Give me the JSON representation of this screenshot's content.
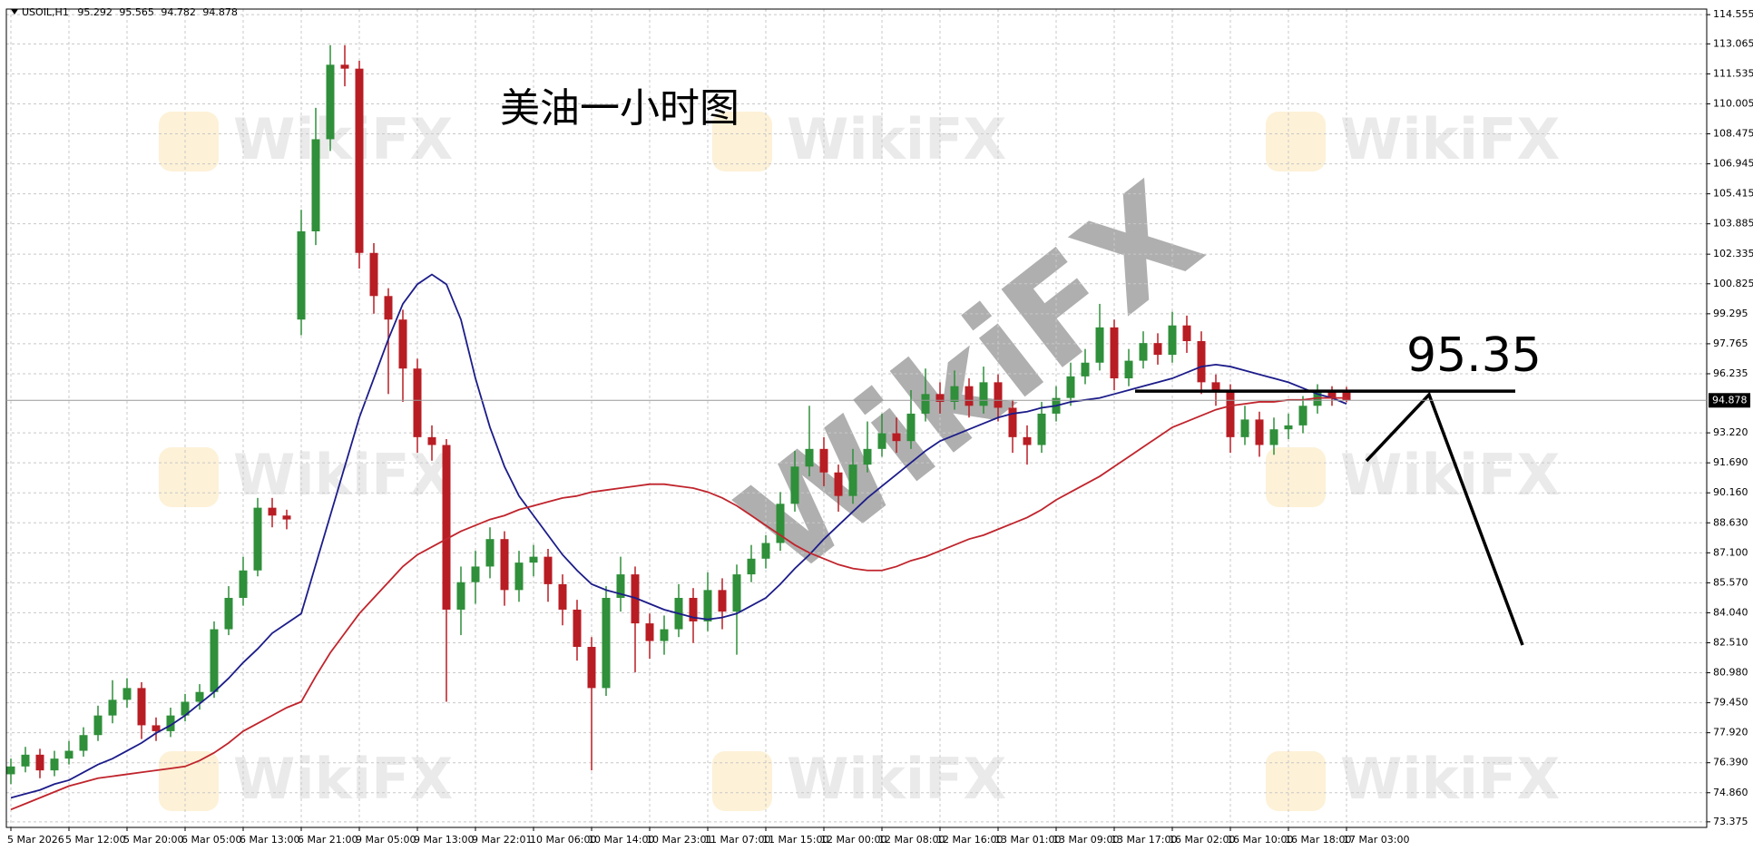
{
  "chart_data": {
    "type": "candlestick",
    "symbol_label": "USOIL,H1",
    "title": "美油一小时图",
    "annotation_level": 95.35,
    "watermark": "WikiFX",
    "up_color": "#2f8f3a",
    "down_color": "#b81d24",
    "grid": true,
    "categories": [
      "5 Mar 2026",
      null,
      null,
      null,
      "5 Mar 12:00",
      null,
      null,
      null,
      "5 Mar 20:00",
      null,
      null,
      null,
      "6 Mar 05:00",
      null,
      null,
      null,
      "6 Mar 13:00",
      null,
      null,
      null,
      "6 Mar 21:00",
      null,
      null,
      null,
      "9 Mar 05:00",
      null,
      null,
      null,
      "9 Mar 13:00",
      null,
      null,
      null,
      "9 Mar 22:01",
      null,
      null,
      null,
      "10 Mar 06:00",
      null,
      null,
      null,
      "10 Mar 14:00",
      null,
      null,
      null,
      "10 Mar 23:01",
      null,
      null,
      null,
      "11 Mar 07:00",
      null,
      null,
      null,
      "11 Mar 15:00",
      null,
      null,
      null,
      "12 Mar 00:00",
      null,
      null,
      null,
      "12 Mar 08:00",
      null,
      null,
      null,
      "12 Mar 16:00",
      null,
      null,
      null,
      "13 Mar 01:00",
      null,
      null,
      null,
      "13 Mar 09:00",
      null,
      null,
      null,
      "13 Mar 17:00",
      null,
      null,
      null,
      "16 Mar 02:00",
      null,
      null,
      null,
      "16 Mar 10:00",
      null,
      null,
      null,
      "16 Mar 18:00",
      null,
      null,
      null,
      "17 Mar 03:00"
    ],
    "open": [
      75.8,
      76.2,
      76.8,
      76.0,
      76.6,
      77.0,
      77.8,
      78.8,
      79.6,
      80.2,
      78.3,
      78.0,
      78.8,
      79.5,
      80.0,
      83.2,
      84.8,
      86.2,
      89.4,
      89.0,
      99.0,
      103.5,
      108.2,
      112.0,
      111.8,
      102.4,
      100.2,
      99.0,
      96.5,
      93.0,
      92.6,
      84.2,
      85.6,
      86.4,
      87.8,
      85.2,
      86.6,
      86.9,
      85.5,
      84.2,
      82.3,
      80.2,
      84.8,
      86.0,
      83.5,
      82.6,
      83.2,
      84.8,
      83.6,
      85.2,
      84.1,
      86.0,
      86.8,
      87.6,
      89.6,
      91.5,
      92.4,
      91.2,
      90.0,
      91.6,
      92.4,
      93.2,
      92.8,
      94.2,
      95.2,
      94.8,
      95.6,
      94.6,
      95.8,
      94.5,
      93.0,
      92.6,
      94.2,
      95.0,
      96.1,
      96.8,
      98.6,
      96.0,
      96.9,
      97.8,
      97.2,
      98.7,
      97.9,
      95.8,
      95.3,
      93.0,
      93.9,
      92.6,
      93.4,
      93.6,
      94.6,
      95.3,
      95.292
    ],
    "high": [
      76.6,
      77.2,
      77.1,
      77.0,
      77.5,
      78.2,
      79.3,
      80.6,
      80.7,
      80.5,
      78.7,
      79.2,
      79.9,
      80.4,
      83.6,
      85.4,
      86.9,
      89.9,
      89.9,
      89.3,
      104.6,
      109.8,
      113.0,
      113.0,
      112.2,
      102.9,
      100.6,
      99.5,
      97.0,
      93.6,
      92.9,
      86.4,
      87.2,
      88.4,
      88.2,
      87.2,
      87.5,
      87.3,
      86.0,
      84.7,
      82.8,
      85.4,
      86.9,
      86.4,
      84.0,
      83.9,
      85.5,
      85.3,
      86.1,
      85.8,
      86.5,
      87.5,
      88.0,
      90.2,
      92.3,
      94.6,
      93.0,
      91.6,
      92.4,
      93.8,
      94.2,
      94.0,
      95.4,
      96.5,
      95.8,
      96.4,
      96.0,
      96.6,
      96.2,
      94.9,
      93.6,
      94.8,
      95.6,
      96.8,
      97.5,
      99.8,
      99.0,
      97.5,
      98.4,
      98.3,
      99.4,
      99.2,
      98.4,
      96.2,
      95.7,
      94.6,
      94.3,
      94.0,
      94.2,
      95.1,
      95.7,
      95.6,
      95.565
    ],
    "low": [
      75.3,
      75.9,
      75.6,
      75.7,
      76.3,
      76.7,
      77.5,
      78.4,
      79.2,
      77.6,
      77.5,
      77.7,
      78.5,
      79.1,
      79.7,
      82.9,
      84.4,
      85.9,
      88.4,
      88.3,
      98.2,
      102.8,
      107.6,
      110.9,
      101.6,
      99.3,
      95.2,
      94.8,
      92.2,
      91.8,
      79.5,
      82.9,
      84.5,
      85.8,
      84.4,
      84.6,
      85.9,
      84.6,
      83.4,
      81.6,
      76.0,
      79.8,
      84.1,
      81.0,
      81.7,
      81.9,
      82.8,
      82.5,
      83.1,
      83.2,
      81.9,
      85.6,
      86.3,
      87.2,
      89.2,
      91.0,
      90.5,
      89.2,
      89.6,
      91.2,
      92.0,
      92.2,
      92.4,
      93.8,
      94.2,
      94.4,
      94.0,
      94.2,
      93.8,
      92.2,
      91.6,
      92.2,
      93.8,
      94.6,
      95.7,
      96.4,
      95.4,
      95.6,
      96.5,
      96.7,
      96.8,
      97.3,
      95.2,
      94.6,
      92.2,
      92.6,
      92.0,
      92.1,
      92.9,
      93.2,
      94.2,
      94.6,
      94.782
    ],
    "close": [
      76.2,
      76.8,
      76.0,
      76.6,
      77.0,
      77.8,
      78.8,
      79.6,
      80.2,
      78.3,
      78.0,
      78.8,
      79.5,
      80.0,
      83.2,
      84.8,
      86.2,
      89.4,
      89.0,
      88.8,
      103.5,
      108.2,
      112.0,
      111.8,
      102.4,
      100.2,
      99.0,
      96.5,
      93.0,
      92.6,
      84.2,
      85.6,
      86.4,
      87.8,
      85.2,
      86.6,
      86.9,
      85.5,
      84.2,
      82.3,
      80.2,
      84.8,
      86.0,
      83.5,
      82.6,
      83.2,
      84.8,
      83.6,
      85.2,
      84.1,
      86.0,
      86.8,
      87.6,
      89.6,
      91.5,
      92.4,
      91.2,
      90.0,
      91.6,
      92.4,
      93.2,
      92.8,
      94.2,
      95.2,
      94.8,
      95.6,
      94.6,
      95.8,
      94.5,
      93.0,
      92.6,
      94.2,
      95.0,
      96.1,
      96.8,
      98.6,
      96.0,
      96.9,
      97.8,
      97.2,
      98.7,
      97.9,
      95.8,
      95.3,
      93.0,
      93.9,
      92.6,
      93.4,
      93.6,
      94.6,
      95.3,
      95.0,
      94.878
    ],
    "series": [
      {
        "color": "#1c1c8a",
        "values": [
          74.6,
          74.8,
          75.0,
          75.3,
          75.5,
          75.9,
          76.3,
          76.6,
          77.0,
          77.4,
          77.9,
          78.3,
          78.8,
          79.4,
          80.0,
          80.7,
          81.5,
          82.2,
          83.0,
          83.5,
          84.0,
          86.5,
          89.0,
          91.5,
          94.0,
          96.0,
          98.0,
          99.8,
          100.8,
          101.3,
          100.8,
          99.0,
          96.0,
          93.5,
          91.5,
          90.0,
          89.0,
          88.0,
          87.0,
          86.2,
          85.5,
          85.2,
          85.0,
          84.8,
          84.5,
          84.2,
          84.0,
          83.8,
          83.7,
          83.8,
          84.0,
          84.4,
          84.8,
          85.5,
          86.3,
          87.0,
          87.8,
          88.5,
          89.2,
          89.9,
          90.5,
          91.1,
          91.7,
          92.3,
          92.8,
          93.1,
          93.4,
          93.7,
          94.0,
          94.2,
          94.3,
          94.5,
          94.6,
          94.8,
          94.9,
          95.0,
          95.2,
          95.4,
          95.6,
          95.8,
          96.0,
          96.3,
          96.6,
          96.7,
          96.6,
          96.4,
          96.2,
          96.0,
          95.8,
          95.5,
          95.2,
          95.0,
          94.7
        ]
      },
      {
        "color": "#c0242c",
        "values": [
          74.0,
          74.3,
          74.6,
          74.9,
          75.2,
          75.4,
          75.6,
          75.7,
          75.8,
          75.9,
          76.0,
          76.1,
          76.2,
          76.5,
          76.9,
          77.4,
          78.0,
          78.4,
          78.8,
          79.2,
          79.5,
          80.8,
          82.0,
          83.0,
          84.0,
          84.8,
          85.6,
          86.4,
          87.0,
          87.4,
          87.8,
          88.2,
          88.5,
          88.8,
          89.0,
          89.3,
          89.5,
          89.7,
          89.9,
          90.0,
          90.2,
          90.3,
          90.4,
          90.5,
          90.6,
          90.6,
          90.5,
          90.4,
          90.2,
          89.9,
          89.5,
          89.0,
          88.5,
          88.0,
          87.5,
          87.1,
          86.8,
          86.5,
          86.3,
          86.2,
          86.2,
          86.4,
          86.7,
          86.9,
          87.2,
          87.5,
          87.8,
          88.0,
          88.3,
          88.6,
          88.9,
          89.3,
          89.8,
          90.2,
          90.6,
          91.0,
          91.5,
          92.0,
          92.5,
          93.0,
          93.5,
          93.8,
          94.1,
          94.4,
          94.6,
          94.7,
          94.8,
          94.8,
          94.9,
          94.9,
          95.0,
          95.0,
          95.0
        ]
      }
    ],
    "ylim": [
      73.09,
      114.84
    ],
    "yticks": [
      114.555,
      113.065,
      111.535,
      110.005,
      108.475,
      106.945,
      105.415,
      103.885,
      102.335,
      100.825,
      99.295,
      97.765,
      96.235,
      {
        "value": 93.22,
        "label": "93.220"
      },
      {
        "value": 91.69,
        "label": "91.690"
      },
      {
        "value": 90.16,
        "label": "90.160"
      },
      {
        "value": 88.63,
        "label": "88.630"
      },
      {
        "value": 87.1,
        "label": "87.100"
      },
      {
        "value": 85.57,
        "label": "85.570"
      },
      {
        "value": 84.04,
        "label": "84.040"
      },
      {
        "value": 82.51,
        "label": "82.510"
      },
      {
        "value": 80.98,
        "label": "80.980"
      },
      {
        "value": 79.45,
        "label": "79.450"
      },
      {
        "value": 77.92,
        "label": "77.920"
      },
      {
        "value": 76.39,
        "label": "76.390"
      },
      {
        "value": 74.86,
        "label": "74.860"
      },
      73.375
    ]
  }
}
